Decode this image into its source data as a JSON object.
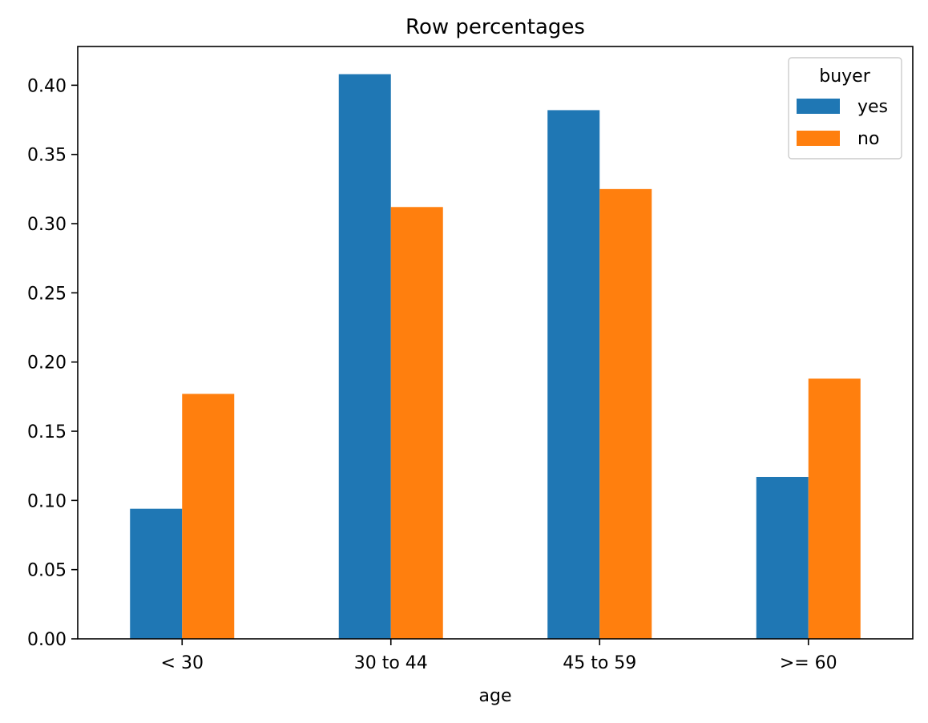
{
  "chart_data": {
    "type": "bar",
    "title": "Row percentages",
    "xlabel": "age",
    "ylabel": "",
    "categories": [
      "< 30",
      "30 to 44",
      "45 to 59",
      ">= 60"
    ],
    "series": [
      {
        "name": "yes",
        "color": "#1f77b4",
        "values": [
          0.094,
          0.408,
          0.382,
          0.117
        ]
      },
      {
        "name": "no",
        "color": "#ff7f0e",
        "values": [
          0.177,
          0.312,
          0.325,
          0.188
        ]
      }
    ],
    "ylim": [
      0,
      0.428
    ],
    "yticks": [
      "0.00",
      "0.05",
      "0.10",
      "0.15",
      "0.20",
      "0.25",
      "0.30",
      "0.35",
      "0.40"
    ],
    "legend": {
      "title": "buyer",
      "placement": "top-right"
    },
    "grid": false
  }
}
